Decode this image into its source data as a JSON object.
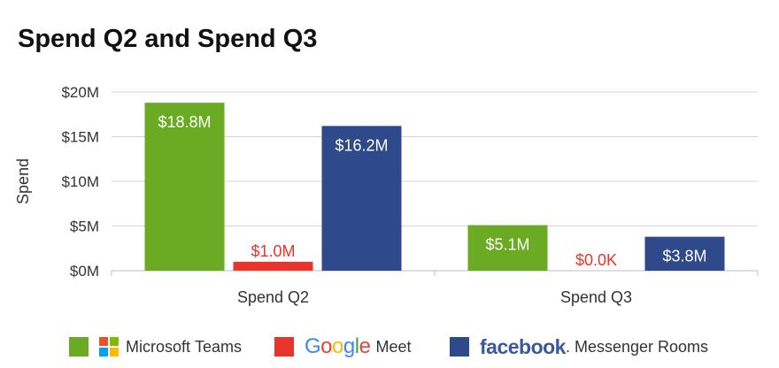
{
  "chart_data": {
    "type": "bar",
    "title": "Spend Q2 and Spend Q3",
    "ylabel": "Spend",
    "xlabel": "",
    "ylim": [
      0,
      20
    ],
    "yticks": [
      {
        "value": 0,
        "label": "$0M"
      },
      {
        "value": 5,
        "label": "$5M"
      },
      {
        "value": 10,
        "label": "$10M"
      },
      {
        "value": 15,
        "label": "$15M"
      },
      {
        "value": 20,
        "label": "$20M"
      }
    ],
    "grid": true,
    "legend_position": "bottom",
    "categories": [
      "Spend Q2",
      "Spend Q3"
    ],
    "series": [
      {
        "name": "Microsoft Teams",
        "color": "#6aab23",
        "label_color": "#ffffff",
        "values": [
          18.8,
          5.1
        ],
        "labels": [
          "$18.8M",
          "$5.1M"
        ]
      },
      {
        "name": "Google Meet",
        "color": "#e8352c",
        "label_color": "#e8352c",
        "values": [
          1.0,
          0.0
        ],
        "labels": [
          "$1.0M",
          "$0.0K"
        ]
      },
      {
        "name": "Messenger Rooms",
        "color": "#2f4a8a",
        "label_color": "#ffffff",
        "values": [
          16.2,
          3.8
        ],
        "labels": [
          "$16.2M",
          "$3.8M"
        ]
      }
    ]
  },
  "legend": {
    "items": [
      {
        "brand": "Microsoft",
        "text": "Teams",
        "swatch": "#6aab23",
        "logo_colors": [
          "#f25022",
          "#7fba00",
          "#00a4ef",
          "#ffb900"
        ]
      },
      {
        "brand": "Google",
        "text": "Meet",
        "swatch": "#e8352c",
        "logo_colors": [
          "#4285f4",
          "#ea4335",
          "#fbbc05",
          "#4285f4",
          "#34a853",
          "#ea4335"
        ]
      },
      {
        "brand": "facebook",
        "text": ". Messenger Rooms",
        "swatch": "#2f4a8a"
      }
    ]
  }
}
